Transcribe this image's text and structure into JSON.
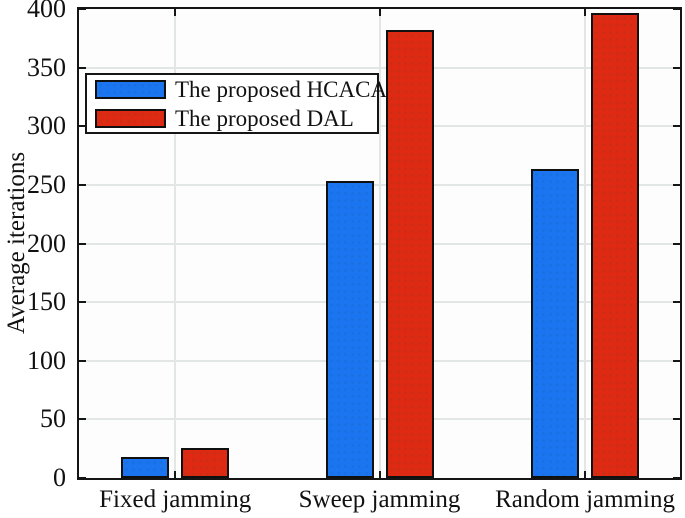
{
  "figure": {
    "background_color": "#ffffff",
    "axis_color": "#151515",
    "grid_color": "#e2e6e4"
  },
  "chart_data": {
    "type": "bar",
    "title": "",
    "xlabel": "",
    "ylabel": "Average iterations",
    "categories": [
      "Fixed jamming",
      "Sweep jamming",
      "Random jamming"
    ],
    "series": [
      {
        "name": "The proposed HCACA",
        "color": "#1b74f0",
        "values": [
          16,
          252,
          262
        ]
      },
      {
        "name": "The proposed DAL",
        "color": "#de2a12",
        "values": [
          24,
          380,
          395
        ]
      }
    ],
    "ylim": [
      0,
      400
    ],
    "yticks": [
      0,
      50,
      100,
      150,
      200,
      250,
      300,
      350,
      400
    ],
    "grid": true,
    "grid_vertical_at_categories": true,
    "legend_position": "upper-left-inside",
    "bar_edge_color": "#101010"
  }
}
